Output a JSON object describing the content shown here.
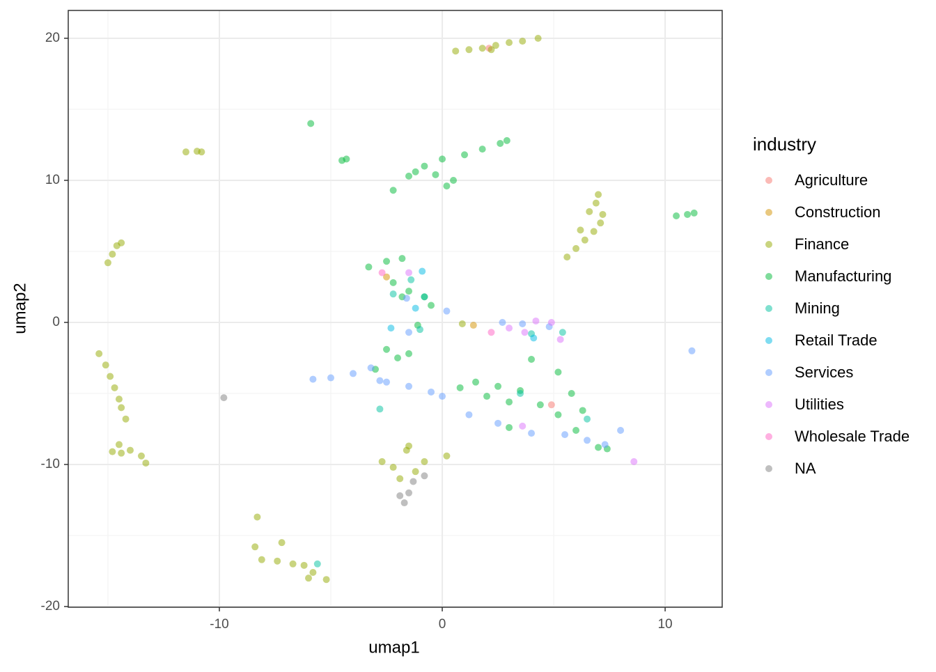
{
  "chart_data": {
    "type": "scatter",
    "x_label": "umap1",
    "y_label": "umap2",
    "legend_title": "industry",
    "legend": "right",
    "xlim": [
      -16.78,
      12.56
    ],
    "ylim": [
      -20.05,
      21.96
    ],
    "xticks": [
      -10,
      0,
      10
    ],
    "yticks": [
      -20,
      -10,
      0,
      10,
      20
    ],
    "minor_xticks": [
      -15,
      -5,
      5
    ],
    "minor_yticks": [
      -15,
      -5,
      5,
      15
    ],
    "grid": true,
    "point_opacity": 0.5,
    "series": [
      {
        "name": "Agriculture",
        "color": "#F8766D",
        "x": [
          2.1,
          4.9
        ],
        "values": [
          19.3,
          -5.8
        ]
      },
      {
        "name": "Construction",
        "color": "#D39200",
        "x": [
          1.4,
          -2.5
        ],
        "values": [
          -0.2,
          3.2
        ]
      },
      {
        "name": "Finance",
        "color": "#93AA00",
        "x": [
          0.6,
          1.2,
          1.8,
          2.4,
          3,
          3.6,
          4.3,
          2.2,
          5.6,
          6,
          6.4,
          6.8,
          7.1,
          7.2,
          6.9,
          7,
          6.6,
          6.2,
          -15.4,
          -15.1,
          -14.9,
          -14.7,
          -14.5,
          -14.4,
          -14.2,
          -14.5,
          -14,
          -14.4,
          -13.5,
          -13.3,
          -14.8,
          -15,
          -14.8,
          -14.6,
          -14.4,
          -11.5,
          -11,
          -10.8,
          -8.3,
          -8.4,
          -8.1,
          -7.4,
          -7.2,
          -6.7,
          -6.2,
          -5.8,
          -6,
          -5.2,
          -2.7,
          -2.2,
          -1.6,
          -1.2,
          -0.8,
          -1.9,
          0.2,
          -1.5,
          0.9
        ],
        "values": [
          19.1,
          19.2,
          19.3,
          19.5,
          19.7,
          19.8,
          20,
          19.2,
          4.6,
          5.2,
          5.8,
          6.4,
          7,
          7.6,
          8.4,
          9,
          7.8,
          6.5,
          -2.2,
          -3,
          -3.8,
          -4.6,
          -5.4,
          -6,
          -6.8,
          -8.6,
          -9,
          -9.2,
          -9.4,
          -9.9,
          -9.1,
          4.2,
          4.8,
          5.4,
          5.6,
          12,
          12.05,
          12,
          -13.7,
          -15.8,
          -16.7,
          -16.8,
          -15.5,
          -17,
          -17.1,
          -17.6,
          -18,
          -18.1,
          -9.8,
          -10.2,
          -9,
          -10.5,
          -9.8,
          -11,
          -9.4,
          -8.7,
          -0.1
        ]
      },
      {
        "name": "Manufacturing",
        "color": "#00BA38",
        "x": [
          -5.9,
          -4.5,
          -4.3,
          -2.2,
          -1.5,
          -0.8,
          0,
          1,
          1.8,
          2.6,
          2.9,
          0.2,
          -0.3,
          0.5,
          -1.2,
          -3.3,
          -2.5,
          -1.8,
          -2.2,
          -1.5,
          -0.8,
          -0.5,
          -1.8,
          -1.1,
          -1.5,
          -2,
          -3,
          -2.5,
          0.8,
          1.5,
          2.5,
          3.5,
          4.4,
          5.2,
          6,
          7,
          7.4,
          3,
          2,
          4,
          5.2,
          5.8,
          6.3,
          3,
          10.5,
          11,
          11.3
        ],
        "values": [
          14,
          11.4,
          11.5,
          9.3,
          10.3,
          11,
          11.5,
          11.8,
          12.2,
          12.6,
          12.8,
          9.6,
          10.4,
          10,
          10.6,
          3.9,
          4.3,
          4.5,
          2.8,
          2.2,
          1.8,
          1.2,
          1.8,
          -0.2,
          -2.2,
          -2.5,
          -3.3,
          -1.9,
          -4.6,
          -4.2,
          -4.5,
          -4.8,
          -5.8,
          -6.5,
          -7.6,
          -8.8,
          -8.9,
          -5.6,
          -5.2,
          -2.6,
          -3.5,
          -5,
          -6.2,
          -7.4,
          7.5,
          7.6,
          7.7
        ]
      },
      {
        "name": "Mining",
        "color": "#00C19F",
        "x": [
          -2.2,
          -1.4,
          -0.8,
          -1,
          -2.8,
          -5.6,
          4,
          5.4,
          3.5,
          6.5
        ],
        "values": [
          2,
          3,
          1.8,
          -0.5,
          -6.1,
          -17,
          -0.8,
          -0.7,
          -5,
          -6.8
        ]
      },
      {
        "name": "Retail Trade",
        "color": "#00B9E3",
        "x": [
          -0.9,
          -1.2,
          4.1,
          -2.3
        ],
        "values": [
          3.6,
          1,
          -1.1,
          -0.4
        ]
      },
      {
        "name": "Services",
        "color": "#619CFF",
        "x": [
          -5.8,
          -5,
          -4,
          -3.2,
          -2.8,
          -2.5,
          -1.5,
          -0.5,
          0,
          -1.6,
          0.2,
          1.2,
          2.5,
          4,
          5.5,
          6.5,
          7.3,
          8,
          11.2,
          -1.5,
          2.7,
          3.6,
          4.8
        ],
        "values": [
          -4,
          -3.9,
          -3.6,
          -3.2,
          -4.1,
          -4.2,
          -4.5,
          -4.9,
          -5.2,
          1.7,
          0.8,
          -6.5,
          -7.1,
          -7.8,
          -7.9,
          -8.3,
          -8.6,
          -7.6,
          -2,
          -0.7,
          0,
          -0.1,
          -0.3
        ]
      },
      {
        "name": "Utilities",
        "color": "#DB72FB",
        "x": [
          3,
          4.2,
          3.7,
          4.9,
          5.3,
          8.6,
          -1.5,
          3.6
        ],
        "values": [
          -0.4,
          0.1,
          -0.7,
          0,
          -1.2,
          -9.8,
          3.5,
          -7.3
        ]
      },
      {
        "name": "Wholesale Trade",
        "color": "#FF61C3",
        "x": [
          -2.7,
          2.2
        ],
        "values": [
          3.5,
          -0.7
        ]
      },
      {
        "name": "NA",
        "color": "#7F7F7F",
        "x": [
          -9.8,
          -1.7,
          -1.5,
          -1.3,
          -0.8,
          -1.9
        ],
        "values": [
          -5.3,
          -12.7,
          -12,
          -11.2,
          -10.8,
          -12.2
        ]
      }
    ]
  }
}
